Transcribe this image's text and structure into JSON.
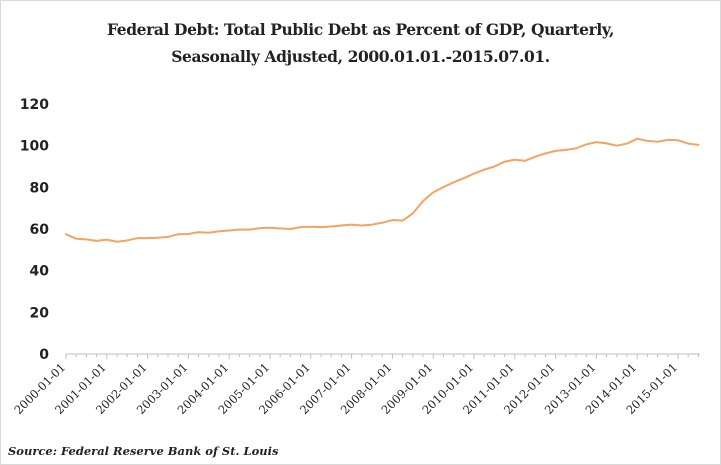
{
  "chart_data": {
    "type": "line",
    "title_line1": "Federal Debt: Total Public Debt as Percent of GDP, Quarterly,",
    "title_line2": "Seasonally Adjusted, 2000.01.01.-2015.07.01.",
    "source": "Source: Federal Reserve Bank of St. Louis",
    "xlabel": "",
    "ylabel": "",
    "ylim": [
      0,
      120
    ],
    "yticks": [
      0,
      20,
      40,
      60,
      80,
      100,
      120
    ],
    "grid": false,
    "legend": "none",
    "line_color": "#f4a460",
    "x_tick_labels": [
      "2000-01-01",
      "2001-01-01",
      "2002-01-01",
      "2003-01-01",
      "2004-01-01",
      "2005-01-01",
      "2006-01-01",
      "2007-01-01",
      "2008-01-01",
      "2009-01-01",
      "2010-01-01",
      "2011-01-01",
      "2012-01-01",
      "2013-01-01",
      "2014-01-01",
      "2015-01-01"
    ],
    "x": [
      "2000-01-01",
      "2000-04-01",
      "2000-07-01",
      "2000-10-01",
      "2001-01-01",
      "2001-04-01",
      "2001-07-01",
      "2001-10-01",
      "2002-01-01",
      "2002-04-01",
      "2002-07-01",
      "2002-10-01",
      "2003-01-01",
      "2003-04-01",
      "2003-07-01",
      "2003-10-01",
      "2004-01-01",
      "2004-04-01",
      "2004-07-01",
      "2004-10-01",
      "2005-01-01",
      "2005-04-01",
      "2005-07-01",
      "2005-10-01",
      "2006-01-01",
      "2006-04-01",
      "2006-07-01",
      "2006-10-01",
      "2007-01-01",
      "2007-04-01",
      "2007-07-01",
      "2007-10-01",
      "2008-01-01",
      "2008-04-01",
      "2008-07-01",
      "2008-10-01",
      "2009-01-01",
      "2009-04-01",
      "2009-07-01",
      "2009-10-01",
      "2010-01-01",
      "2010-04-01",
      "2010-07-01",
      "2010-10-01",
      "2011-01-01",
      "2011-04-01",
      "2011-07-01",
      "2011-10-01",
      "2012-01-01",
      "2012-04-01",
      "2012-07-01",
      "2012-10-01",
      "2013-01-01",
      "2013-04-01",
      "2013-07-01",
      "2013-10-01",
      "2014-01-01",
      "2014-04-01",
      "2014-07-01",
      "2014-10-01",
      "2015-01-01",
      "2015-04-01",
      "2015-07-01"
    ],
    "series": [
      {
        "values": [
          57.5,
          55.3,
          55.0,
          54.3,
          54.9,
          53.9,
          54.5,
          55.6,
          55.6,
          55.8,
          56.2,
          57.5,
          57.6,
          58.5,
          58.2,
          58.9,
          59.3,
          59.7,
          59.7,
          60.4,
          60.6,
          60.3,
          60.0,
          60.9,
          61.1,
          60.9,
          61.2,
          61.7,
          62.1,
          61.7,
          62.1,
          63.0,
          64.3,
          64.0,
          67.5,
          73.4,
          77.6,
          80.1,
          82.4,
          84.4,
          86.6,
          88.5,
          90.0,
          92.3,
          93.3,
          92.7,
          94.7,
          96.3,
          97.5,
          98.0,
          98.7,
          100.6,
          101.7,
          101.1,
          100.0,
          101.0,
          103.3,
          102.3,
          101.9,
          102.8,
          102.6,
          101.0,
          100.4
        ]
      }
    ]
  }
}
